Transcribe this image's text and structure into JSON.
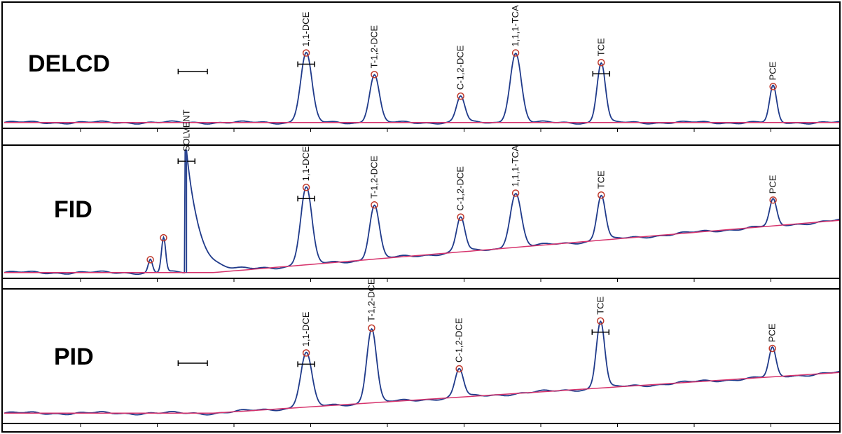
{
  "chart_data": [
    {
      "type": "line",
      "detector": "DELCD",
      "xlim": [
        0,
        1200
      ],
      "ylim": [
        0,
        100
      ],
      "colors": {
        "signal": "#1f3a8a",
        "baseline": "#d6336c",
        "peak_marker": "#c0392b"
      },
      "baseline_y": 6,
      "baseline_slope": 0,
      "peaks": [
        {
          "label": "1,1-DCE",
          "x": 434,
          "height": 58,
          "width": 8,
          "marker": true,
          "bar": true
        },
        {
          "label": "T-1,2-DCE",
          "x": 532,
          "height": 40,
          "width": 7,
          "marker": true,
          "bar": false
        },
        {
          "label": "C-1,2-DCE",
          "x": 656,
          "height": 22,
          "width": 6,
          "marker": true,
          "bar": false
        },
        {
          "label": "1,1,1-TCA",
          "x": 735,
          "height": 58,
          "width": 8,
          "marker": true,
          "bar": false
        },
        {
          "label": "TCE",
          "x": 858,
          "height": 50,
          "width": 6,
          "marker": true,
          "bar": true
        },
        {
          "label": "PCE",
          "x": 1105,
          "height": 30,
          "width": 5,
          "marker": true,
          "bar": false
        }
      ],
      "segment_bar": [
        250,
        292
      ]
    },
    {
      "type": "line",
      "detector": "FID",
      "xlim": [
        0,
        1200
      ],
      "ylim": [
        0,
        100
      ],
      "colors": {
        "signal": "#1f3a8a",
        "baseline": "#d6336c",
        "peak_marker": "#c0392b"
      },
      "baseline_y": 5,
      "baseline_slope": 0.045,
      "peaks": [
        {
          "label": "SOLVENT",
          "x": 262,
          "height": 95,
          "width": 18,
          "marker": false,
          "bar": true,
          "tail": true
        },
        {
          "label": "1,1-DCE",
          "x": 434,
          "height": 60,
          "width": 8,
          "marker": true,
          "bar": true
        },
        {
          "label": "T-1,2-DCE",
          "x": 532,
          "height": 42,
          "width": 7,
          "marker": true,
          "bar": false
        },
        {
          "label": "C-1,2-DCE",
          "x": 656,
          "height": 27,
          "width": 6,
          "marker": true,
          "bar": false
        },
        {
          "label": "1,1,1-TCA",
          "x": 735,
          "height": 42,
          "width": 8,
          "marker": true,
          "bar": false
        },
        {
          "label": "TCE",
          "x": 858,
          "height": 35,
          "width": 6,
          "marker": true,
          "bar": false
        },
        {
          "label": "PCE",
          "x": 1105,
          "height": 20,
          "width": 5,
          "marker": true,
          "bar": false
        }
      ],
      "unlabeled_peaks": [
        {
          "x": 210,
          "height": 10,
          "width": 3
        },
        {
          "x": 229,
          "height": 27,
          "width": 3
        }
      ]
    },
    {
      "type": "line",
      "detector": "PID",
      "xlim": [
        0,
        1200
      ],
      "ylim": [
        0,
        100
      ],
      "colors": {
        "signal": "#1f3a8a",
        "baseline": "#d6336c",
        "peak_marker": "#c0392b"
      },
      "baseline_y": 8,
      "baseline_slope": 0.035,
      "peaks": [
        {
          "label": "1,1-DCE",
          "x": 434,
          "height": 42,
          "width": 8,
          "marker": true,
          "bar": true
        },
        {
          "label": "T-1,2-DCE",
          "x": 528,
          "height": 58,
          "width": 7,
          "marker": true,
          "bar": false
        },
        {
          "label": "C-1,2-DCE",
          "x": 654,
          "height": 22,
          "width": 6,
          "marker": true,
          "bar": false
        },
        {
          "label": "TCE",
          "x": 857,
          "height": 52,
          "width": 6,
          "marker": true,
          "bar": true
        },
        {
          "label": "PCE",
          "x": 1104,
          "height": 22,
          "width": 5,
          "marker": true,
          "bar": false
        }
      ],
      "segment_bar": [
        250,
        292
      ]
    }
  ]
}
